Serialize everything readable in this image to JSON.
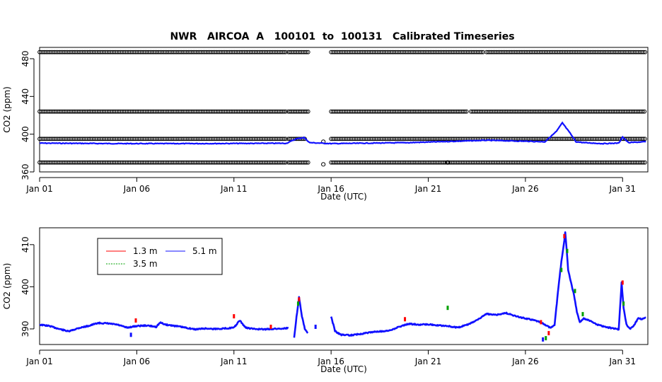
{
  "figure": {
    "title": "NWR   AIRCOA  A   100101  to  100131   Calibrated Timeseries"
  },
  "chart_data": [
    {
      "type": "scatter",
      "title": "NWR   AIRCOA  A   100101  to  100131   Calibrated Timeseries",
      "xlabel": "Date (UTC)",
      "ylabel": "CO2 (ppm)",
      "x_unit": "day of January 2010 (1 = Jan 01 00:00 UTC)",
      "xlim": [
        1,
        32.3
      ],
      "ylim": [
        360,
        492
      ],
      "x_ticks": [
        1,
        6,
        11,
        16,
        21,
        26,
        31
      ],
      "x_tick_labels": [
        "Jan 01",
        "Jan 06",
        "Jan 11",
        "Jan 16",
        "Jan 21",
        "Jan 26",
        "Jan 31"
      ],
      "y_ticks": [
        360,
        400,
        440,
        480
      ],
      "y_tick_labels": [
        "360",
        "400",
        "440",
        "480"
      ],
      "grid": false,
      "series": [
        {
          "style": "open black circles",
          "color": "#000000",
          "levels": [
            {
              "y": 487,
              "segments": [
                [
                  1.0,
                  13.7
                ],
                [
                  13.8,
                  14.9
                ],
                [
                  16.0,
                  23.9
                ],
                [
                  24.0,
                  32.2
                ]
              ]
            },
            {
              "y": 424,
              "segments": [
                [
                  1.0,
                  13.7
                ],
                [
                  13.8,
                  14.9
                ],
                [
                  16.0,
                  23.0
                ],
                [
                  23.2,
                  32.2
                ]
              ]
            },
            {
              "y": 395,
              "segments": [
                [
                  1.0,
                  13.7
                ],
                [
                  13.8,
                  14.7
                ],
                [
                  16.0,
                  32.2
                ]
              ]
            },
            {
              "y": 370,
              "segments": [
                [
                  1.0,
                  13.7
                ],
                [
                  13.8,
                  14.9
                ],
                [
                  16.0,
                  32.2
                ]
              ]
            }
          ],
          "isolated_points": [
            [
              15.6,
              392
            ],
            [
              15.6,
              368
            ],
            [
              22.0,
              370
            ]
          ]
        },
        {
          "style": "blue trace",
          "color": "#1010ff",
          "keypoints": [
            [
              1.0,
              390.5
            ],
            [
              5.0,
              390.0
            ],
            [
              9.0,
              390.0
            ],
            [
              13.0,
              390.3
            ],
            [
              13.7,
              390.3
            ],
            [
              14.2,
              395.0
            ],
            [
              14.6,
              396.5
            ],
            [
              14.9,
              391.0
            ],
            [
              16.0,
              390.0
            ],
            [
              20.0,
              391.0
            ],
            [
              24.0,
              393.5
            ],
            [
              27.0,
              392.0
            ],
            [
              27.6,
              403.0
            ],
            [
              27.9,
              412.0
            ],
            [
              28.3,
              401.0
            ],
            [
              28.6,
              392.0
            ],
            [
              29.0,
              391.0
            ],
            [
              30.0,
              390.0
            ],
            [
              30.8,
              390.5
            ],
            [
              31.0,
              397.0
            ],
            [
              31.3,
              391.0
            ],
            [
              32.2,
              392.0
            ]
          ]
        }
      ]
    },
    {
      "type": "scatter",
      "xlabel": "Date (UTC)",
      "ylabel": "CO2 (ppm)",
      "x_unit": "day of January 2010 (1 = Jan 01 00:00 UTC)",
      "xlim": [
        1,
        32.3
      ],
      "ylim": [
        386.3,
        414
      ],
      "x_ticks": [
        1,
        6,
        11,
        16,
        21,
        26,
        31
      ],
      "x_tick_labels": [
        "Jan 01",
        "Jan 06",
        "Jan 11",
        "Jan 16",
        "Jan 21",
        "Jan 26",
        "Jan 31"
      ],
      "y_ticks": [
        390,
        400,
        410
      ],
      "y_tick_labels": [
        "390",
        "400",
        "410"
      ],
      "grid": false,
      "legend": {
        "position": "top-left",
        "entries": [
          {
            "label": "1.3 m",
            "color": "#ff0000"
          },
          {
            "label": "5.1 m",
            "color": "#1010ff"
          },
          {
            "label": "3.5 m",
            "color": "#00a000"
          }
        ]
      },
      "series": [
        {
          "name": "5.1 m",
          "color": "#1010ff",
          "segments": [
            [
              [
                1.0,
                391.0
              ],
              [
                1.5,
                390.7
              ],
              [
                2.0,
                390.0
              ],
              [
                2.5,
                389.4
              ],
              [
                3.0,
                390.2
              ],
              [
                3.5,
                390.7
              ],
              [
                4.0,
                391.4
              ],
              [
                4.5,
                391.3
              ],
              [
                5.0,
                391.0
              ],
              [
                5.5,
                390.3
              ],
              [
                6.0,
                390.7
              ],
              [
                6.5,
                390.8
              ],
              [
                7.0,
                390.5
              ],
              [
                7.2,
                391.5
              ],
              [
                7.5,
                391.0
              ],
              [
                8.0,
                390.7
              ],
              [
                8.5,
                390.3
              ],
              [
                9.0,
                389.9
              ],
              [
                9.5,
                390.1
              ],
              [
                10.0,
                390.0
              ],
              [
                10.5,
                390.1
              ],
              [
                11.0,
                390.3
              ],
              [
                11.3,
                392.0
              ],
              [
                11.6,
                390.3
              ],
              [
                12.0,
                390.0
              ],
              [
                12.5,
                389.9
              ],
              [
                13.0,
                390.0
              ],
              [
                13.5,
                390.1
              ],
              [
                13.8,
                390.2
              ]
            ],
            [
              [
                14.1,
                388.0
              ],
              [
                14.25,
                394.0
              ],
              [
                14.35,
                397.5
              ],
              [
                14.5,
                393.0
              ],
              [
                14.65,
                390.0
              ],
              [
                14.8,
                389.0
              ]
            ],
            [
              [
                16.0,
                393.0
              ],
              [
                16.2,
                389.5
              ],
              [
                16.5,
                388.6
              ],
              [
                17.0,
                388.5
              ],
              [
                17.5,
                388.8
              ],
              [
                18.0,
                389.2
              ],
              [
                18.5,
                389.4
              ],
              [
                19.0,
                389.6
              ],
              [
                19.5,
                390.5
              ],
              [
                20.0,
                391.2
              ],
              [
                20.5,
                391.0
              ],
              [
                21.0,
                391.1
              ],
              [
                21.5,
                390.8
              ],
              [
                22.0,
                390.7
              ],
              [
                22.5,
                390.3
              ],
              [
                23.0,
                391.0
              ],
              [
                23.5,
                392.0
              ],
              [
                24.0,
                393.6
              ],
              [
                24.5,
                393.3
              ],
              [
                25.0,
                393.8
              ],
              [
                25.5,
                393.0
              ],
              [
                26.0,
                392.5
              ],
              [
                26.5,
                392.0
              ],
              [
                26.8,
                391.5
              ],
              [
                27.1,
                390.8
              ],
              [
                27.3,
                390.2
              ],
              [
                27.5,
                391.0
              ],
              [
                27.7,
                400.0
              ],
              [
                27.85,
                406.0
              ],
              [
                28.0,
                411.0
              ],
              [
                28.05,
                413.0
              ],
              [
                28.2,
                404.0
              ],
              [
                28.35,
                401.0
              ],
              [
                28.5,
                398.0
              ],
              [
                28.65,
                394.0
              ],
              [
                28.8,
                391.5
              ],
              [
                29.0,
                392.5
              ],
              [
                29.3,
                392.0
              ],
              [
                29.6,
                391.2
              ],
              [
                30.0,
                390.6
              ],
              [
                30.4,
                390.2
              ],
              [
                30.8,
                389.9
              ],
              [
                30.95,
                401.0
              ],
              [
                31.05,
                395.0
              ],
              [
                31.2,
                391.0
              ],
              [
                31.4,
                390.0
              ],
              [
                31.6,
                391.0
              ],
              [
                31.8,
                392.5
              ],
              [
                32.0,
                392.3
              ],
              [
                32.2,
                392.7
              ]
            ]
          ],
          "isolated_points": [
            [
              5.7,
              388.6
            ],
            [
              15.2,
              390.5
            ],
            [
              26.9,
              387.5
            ]
          ]
        },
        {
          "name": "1.3 m",
          "color": "#ff0000",
          "points": [
            [
              5.95,
              392.0
            ],
            [
              11.0,
              393.0
            ],
            [
              12.9,
              390.5
            ],
            [
              14.35,
              397.0
            ],
            [
              19.8,
              392.3
            ],
            [
              26.8,
              391.6
            ],
            [
              27.2,
              389.0
            ],
            [
              28.0,
              412.0
            ],
            [
              31.0,
              401.0
            ]
          ]
        },
        {
          "name": "3.5 m",
          "color": "#00a000",
          "points": [
            [
              14.3,
              396.0
            ],
            [
              22.0,
              395.0
            ],
            [
              27.05,
              387.8
            ],
            [
              27.85,
              404.0
            ],
            [
              28.15,
              408.5
            ],
            [
              28.55,
              399.0
            ],
            [
              28.95,
              393.5
            ],
            [
              31.05,
              396.0
            ]
          ]
        }
      ]
    }
  ]
}
